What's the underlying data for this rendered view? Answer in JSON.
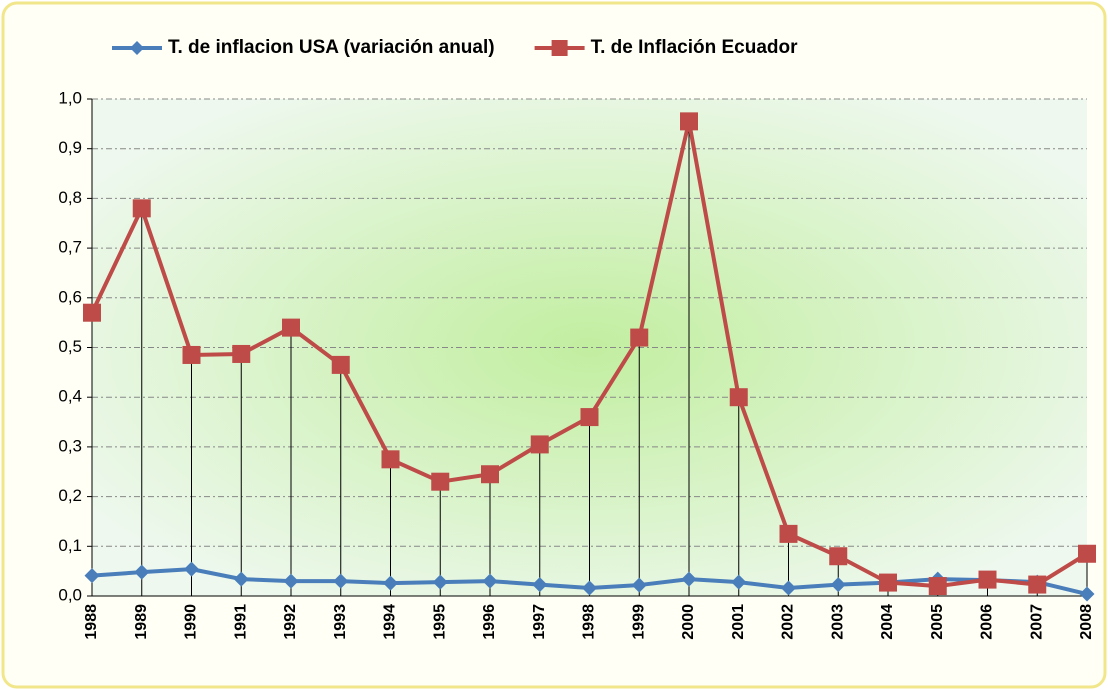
{
  "chart_data": {
    "type": "line",
    "categories": [
      "1988",
      "1989",
      "1990",
      "1991",
      "1992",
      "1993",
      "1994",
      "1995",
      "1996",
      "1997",
      "1998",
      "1999",
      "2000",
      "2001",
      "2002",
      "2003",
      "2004",
      "2005",
      "2006",
      "2007",
      "2008"
    ],
    "series": [
      {
        "name": "T. de inflacion USA (variación anual)",
        "color": "#4a7ebb",
        "marker": "diamond",
        "values": [
          0.041,
          0.048,
          0.054,
          0.034,
          0.03,
          0.03,
          0.026,
          0.028,
          0.03,
          0.023,
          0.016,
          0.022,
          0.034,
          0.028,
          0.016,
          0.023,
          0.027,
          0.034,
          0.032,
          0.028,
          0.004
        ]
      },
      {
        "name": "T. de Inflación Ecuador",
        "color": "#be4b48",
        "marker": "square",
        "values": [
          0.57,
          0.78,
          0.485,
          0.487,
          0.54,
          0.465,
          0.275,
          0.23,
          0.245,
          0.305,
          0.36,
          0.52,
          0.955,
          0.4,
          0.125,
          0.08,
          0.027,
          0.02,
          0.033,
          0.023,
          0.085
        ]
      }
    ],
    "ylim": [
      0,
      1
    ],
    "yticks": [
      {
        "value": 0,
        "label": "0,0"
      },
      {
        "value": 0.1,
        "label": "0,1"
      },
      {
        "value": 0.2,
        "label": "0,2"
      },
      {
        "value": 0.3,
        "label": "0,3"
      },
      {
        "value": 0.4,
        "label": "0,4"
      },
      {
        "value": 0.5,
        "label": "0,5"
      },
      {
        "value": 0.6,
        "label": "0,6"
      },
      {
        "value": 0.7,
        "label": "0,7"
      },
      {
        "value": 0.8,
        "label": "0,8"
      },
      {
        "value": 0.9,
        "label": "0,9"
      },
      {
        "value": 1,
        "label": "1,0"
      }
    ],
    "grid": true,
    "drop_lines": true,
    "legend": "top"
  }
}
